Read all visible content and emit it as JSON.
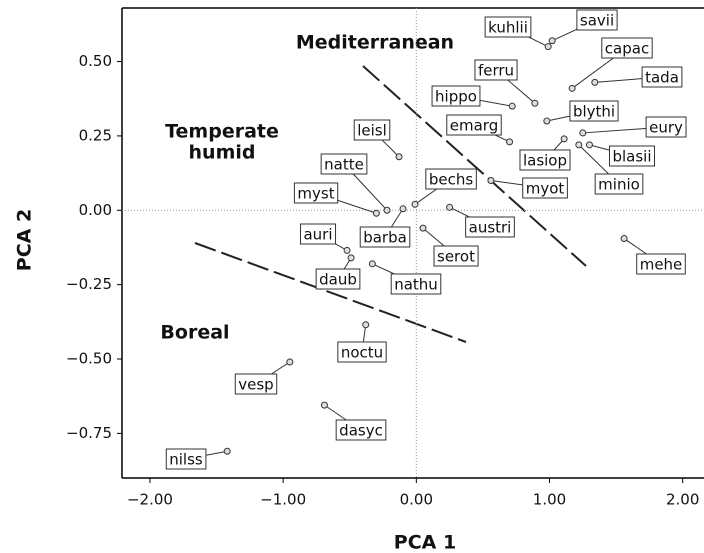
{
  "chart_data": {
    "type": "scatter",
    "xlabel": "PCA 1",
    "ylabel": "PCA 2",
    "xlim": [
      -2.21,
      2.16
    ],
    "ylim": [
      -0.9,
      0.68
    ],
    "xticks": [
      {
        "value": -2,
        "label": "−2.00"
      },
      {
        "value": -1,
        "label": "−1.00"
      },
      {
        "value": 0,
        "label": "0.00"
      },
      {
        "value": 1,
        "label": "1.00"
      },
      {
        "value": 2,
        "label": "2.00"
      }
    ],
    "yticks": [
      {
        "value": -0.75,
        "label": "−0.75"
      },
      {
        "value": -0.5,
        "label": "−0.50"
      },
      {
        "value": -0.25,
        "label": "−0.25"
      },
      {
        "value": 0,
        "label": "0.00"
      },
      {
        "value": 0.25,
        "label": "0.25"
      },
      {
        "value": 0.5,
        "label": "0.50"
      }
    ],
    "annotations": [
      "Mediterranean",
      "Temperate",
      "humid",
      "Boreal"
    ],
    "labels": [
      "kuhlii",
      "savii",
      "capac",
      "tada",
      "ferru",
      "hippo",
      "blythi",
      "emarg",
      "eury",
      "lasiop",
      "blasii",
      "minio",
      "bechs",
      "myot",
      "leisl",
      "natte",
      "myst",
      "barba",
      "austri",
      "serot",
      "auri",
      "daub",
      "nathu",
      "mehe",
      "noctu",
      "vesp",
      "dasyc",
      "nilss"
    ],
    "x": [
      0.99,
      1.02,
      1.17,
      1.34,
      0.89,
      0.72,
      0.98,
      0.7,
      1.25,
      1.11,
      1.3,
      1.22,
      -0.01,
      0.56,
      -0.13,
      -0.22,
      -0.3,
      -0.1,
      0.25,
      0.05,
      -0.52,
      -0.49,
      -0.33,
      1.56,
      -0.38,
      -0.95,
      -0.69,
      -1.42
    ],
    "y": [
      0.55,
      0.57,
      0.41,
      0.43,
      0.36,
      0.35,
      0.3,
      0.23,
      0.26,
      0.24,
      0.22,
      0.22,
      0.02,
      0.1,
      0.18,
      0.0,
      -0.01,
      0.005,
      0.01,
      -0.06,
      -0.135,
      -0.16,
      -0.18,
      -0.095,
      -0.385,
      -0.51,
      -0.655,
      -0.81
    ]
  }
}
